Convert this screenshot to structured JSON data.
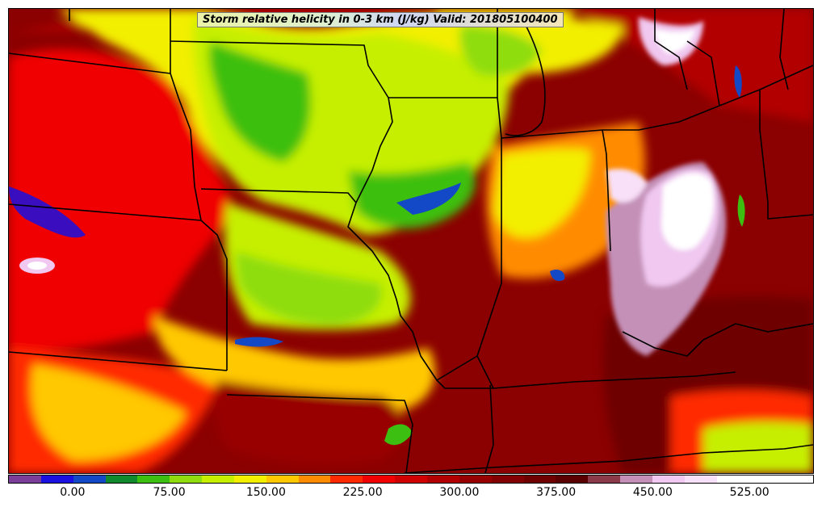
{
  "title": "Storm relative helicity in 0-3 km (J/kg) Valid: 201805100400",
  "colorbar": {
    "min": -50,
    "max": 575,
    "step": 25,
    "ticks": [
      "0.00",
      "75.00",
      "150.00",
      "225.00",
      "300.00",
      "375.00",
      "450.00",
      "525.00"
    ],
    "tick_values": [
      0,
      75,
      150,
      225,
      300,
      375,
      450,
      525
    ],
    "colors": [
      "#7b3f9a",
      "#1a10e0",
      "#1348c6",
      "#108a2c",
      "#3cbf10",
      "#8fdd10",
      "#c6ef00",
      "#f3ef00",
      "#ffc800",
      "#ff8c00",
      "#ff2a00",
      "#f00000",
      "#d00000",
      "#b20000",
      "#980000",
      "#820000",
      "#6e0000",
      "#5a0000",
      "#8b3a4a",
      "#c490b8",
      "#f0c8f0",
      "#f8e0f8",
      "#ffffff",
      "#ffffff",
      "#ffffff"
    ]
  },
  "legend_placement": "bottom",
  "map_region": "central United States"
}
